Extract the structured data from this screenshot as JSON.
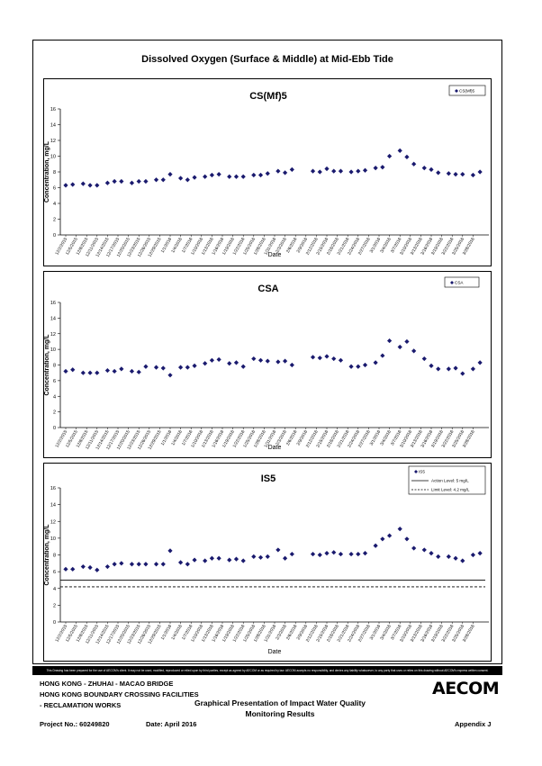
{
  "page": {
    "main_title": "Dissolved Oxygen (Surface & Middle) at Mid-Ebb Tide"
  },
  "colors": {
    "marker": "#1a1a6e",
    "axis": "#000000",
    "line": "#000000"
  },
  "chart_data": [
    {
      "type": "scatter",
      "title": "CS(Mf)5",
      "xlabel": "Date",
      "ylabel": "Concentration, mg/L",
      "ylim": [
        0,
        16
      ],
      "yticks": [
        0,
        2,
        4,
        6,
        8,
        10,
        12,
        14,
        16
      ],
      "legend": {
        "placement": "top-right",
        "entries": [
          {
            "label": "CS(Mf)5",
            "marker": "diamond"
          }
        ]
      },
      "x_tick_labels": [
        "12/2/2015",
        "12/5/2015",
        "12/8/2015",
        "12/11/2015",
        "12/14/2015",
        "12/17/2015",
        "12/20/2015",
        "12/23/2015",
        "12/26/2015",
        "12/29/2015",
        "1/1/2016",
        "1/4/2016",
        "1/7/2016",
        "1/10/2016",
        "1/13/2016",
        "1/16/2016",
        "1/19/2016",
        "1/22/2016",
        "1/25/2016",
        "1/28/2016",
        "1/31/2016",
        "2/3/2016",
        "2/6/2016",
        "2/9/2016",
        "2/12/2016",
        "2/15/2016",
        "2/18/2016",
        "2/21/2016",
        "2/24/2016",
        "2/27/2016",
        "3/1/2016",
        "3/4/2016",
        "3/7/2016",
        "3/10/2016",
        "3/13/2016",
        "3/16/2016",
        "3/19/2016",
        "3/22/2016",
        "3/25/2016",
        "3/28/2016"
      ],
      "series": [
        {
          "name": "CS(Mf)5",
          "points": [
            [
              "12/2/2015",
              6.3
            ],
            [
              "12/4/2015",
              6.4
            ],
            [
              "12/7/2015",
              6.5
            ],
            [
              "12/9/2015",
              6.3
            ],
            [
              "12/11/2015",
              6.3
            ],
            [
              "12/14/2015",
              6.6
            ],
            [
              "12/16/2015",
              6.8
            ],
            [
              "12/18/2015",
              6.8
            ],
            [
              "12/21/2015",
              6.6
            ],
            [
              "12/23/2015",
              6.8
            ],
            [
              "12/25/2015",
              6.8
            ],
            [
              "12/28/2015",
              7.0
            ],
            [
              "12/30/2015",
              7.0
            ],
            [
              "1/1/2016",
              7.7
            ],
            [
              "1/4/2016",
              7.2
            ],
            [
              "1/6/2016",
              7.0
            ],
            [
              "1/8/2016",
              7.3
            ],
            [
              "1/11/2016",
              7.4
            ],
            [
              "1/13/2016",
              7.6
            ],
            [
              "1/15/2016",
              7.7
            ],
            [
              "1/18/2016",
              7.4
            ],
            [
              "1/20/2016",
              7.4
            ],
            [
              "1/22/2016",
              7.4
            ],
            [
              "1/25/2016",
              7.6
            ],
            [
              "1/27/2016",
              7.6
            ],
            [
              "1/29/2016",
              7.8
            ],
            [
              "2/1/2016",
              8.1
            ],
            [
              "2/3/2016",
              7.9
            ],
            [
              "2/5/2016",
              8.3
            ],
            [
              "2/11/2016",
              8.1
            ],
            [
              "2/13/2016",
              8.0
            ],
            [
              "2/15/2016",
              8.4
            ],
            [
              "2/17/2016",
              8.1
            ],
            [
              "2/19/2016",
              8.1
            ],
            [
              "2/22/2016",
              8.0
            ],
            [
              "2/24/2016",
              8.1
            ],
            [
              "2/26/2016",
              8.2
            ],
            [
              "2/29/2016",
              8.5
            ],
            [
              "3/2/2016",
              8.6
            ],
            [
              "3/4/2016",
              10.0
            ],
            [
              "3/7/2016",
              10.7
            ],
            [
              "3/9/2016",
              9.9
            ],
            [
              "3/11/2016",
              9.0
            ],
            [
              "3/14/2016",
              8.5
            ],
            [
              "3/16/2016",
              8.3
            ],
            [
              "3/18/2016",
              7.9
            ],
            [
              "3/21/2016",
              7.8
            ],
            [
              "3/23/2016",
              7.7
            ],
            [
              "3/25/2016",
              7.7
            ],
            [
              "3/28/2016",
              7.6
            ],
            [
              "3/30/2016",
              8.0
            ]
          ]
        }
      ]
    },
    {
      "type": "scatter",
      "title": "CSA",
      "xlabel": "Date",
      "ylabel": "Concentration, mg/L",
      "ylim": [
        0,
        16
      ],
      "yticks": [
        0,
        2,
        4,
        6,
        8,
        10,
        12,
        14,
        16
      ],
      "legend": {
        "placement": "top-right",
        "entries": [
          {
            "label": "CSA",
            "marker": "diamond"
          }
        ]
      },
      "x_tick_labels": [
        "12/2/2015",
        "12/5/2015",
        "12/8/2015",
        "12/11/2015",
        "12/14/2015",
        "12/17/2015",
        "12/20/2015",
        "12/23/2015",
        "12/26/2015",
        "12/29/2015",
        "1/1/2016",
        "1/4/2016",
        "1/7/2016",
        "1/10/2016",
        "1/13/2016",
        "1/16/2016",
        "1/19/2016",
        "1/22/2016",
        "1/25/2016",
        "1/28/2016",
        "1/31/2016",
        "2/3/2016",
        "2/6/2016",
        "2/9/2016",
        "2/12/2016",
        "2/15/2016",
        "2/18/2016",
        "2/21/2016",
        "2/24/2016",
        "2/27/2016",
        "3/1/2016",
        "3/4/2016",
        "3/7/2016",
        "3/10/2016",
        "3/13/2016",
        "3/16/2016",
        "3/19/2016",
        "3/22/2016",
        "3/25/2016",
        "3/28/2016"
      ],
      "series": [
        {
          "name": "CSA",
          "points": [
            [
              "12/2/2015",
              7.2
            ],
            [
              "12/4/2015",
              7.4
            ],
            [
              "12/7/2015",
              7.0
            ],
            [
              "12/9/2015",
              7.0
            ],
            [
              "12/11/2015",
              7.0
            ],
            [
              "12/14/2015",
              7.3
            ],
            [
              "12/16/2015",
              7.2
            ],
            [
              "12/18/2015",
              7.5
            ],
            [
              "12/21/2015",
              7.2
            ],
            [
              "12/23/2015",
              7.1
            ],
            [
              "12/25/2015",
              7.8
            ],
            [
              "12/28/2015",
              7.7
            ],
            [
              "12/30/2015",
              7.6
            ],
            [
              "1/1/2016",
              6.7
            ],
            [
              "1/4/2016",
              7.7
            ],
            [
              "1/6/2016",
              7.7
            ],
            [
              "1/8/2016",
              7.9
            ],
            [
              "1/11/2016",
              8.2
            ],
            [
              "1/13/2016",
              8.6
            ],
            [
              "1/15/2016",
              8.7
            ],
            [
              "1/18/2016",
              8.2
            ],
            [
              "1/20/2016",
              8.3
            ],
            [
              "1/22/2016",
              7.8
            ],
            [
              "1/25/2016",
              8.8
            ],
            [
              "1/27/2016",
              8.6
            ],
            [
              "1/29/2016",
              8.5
            ],
            [
              "2/1/2016",
              8.4
            ],
            [
              "2/3/2016",
              8.5
            ],
            [
              "2/5/2016",
              8.0
            ],
            [
              "2/11/2016",
              9.0
            ],
            [
              "2/13/2016",
              8.9
            ],
            [
              "2/15/2016",
              9.1
            ],
            [
              "2/17/2016",
              8.8
            ],
            [
              "2/19/2016",
              8.6
            ],
            [
              "2/22/2016",
              7.8
            ],
            [
              "2/24/2016",
              7.8
            ],
            [
              "2/26/2016",
              8.0
            ],
            [
              "2/29/2016",
              8.3
            ],
            [
              "3/2/2016",
              9.2
            ],
            [
              "3/4/2016",
              11.1
            ],
            [
              "3/7/2016",
              10.3
            ],
            [
              "3/9/2016",
              11.0
            ],
            [
              "3/11/2016",
              9.8
            ],
            [
              "3/14/2016",
              8.8
            ],
            [
              "3/16/2016",
              7.9
            ],
            [
              "3/18/2016",
              7.5
            ],
            [
              "3/21/2016",
              7.5
            ],
            [
              "3/23/2016",
              7.6
            ],
            [
              "3/25/2016",
              6.9
            ],
            [
              "3/28/2016",
              7.5
            ],
            [
              "3/30/2016",
              8.3
            ]
          ]
        }
      ]
    },
    {
      "type": "scatter",
      "title": "IS5",
      "xlabel": "Date",
      "ylabel": "Concentration, mg/L",
      "ylim": [
        0,
        16
      ],
      "yticks": [
        0,
        2,
        4,
        6,
        8,
        10,
        12,
        14,
        16
      ],
      "legend": {
        "placement": "top-right",
        "entries": [
          {
            "label": "IS5",
            "marker": "diamond"
          },
          {
            "label": "Action Level: 5 mg/L",
            "marker": "solid-line"
          },
          {
            "label": "Limit Level: 4.2 mg/L",
            "marker": "dashed-line"
          }
        ]
      },
      "reference_lines": [
        {
          "label": "Action Level: 5 mg/L",
          "value": 5,
          "style": "solid"
        },
        {
          "label": "Limit Level: 4.2 mg/L",
          "value": 4.2,
          "style": "dashed"
        }
      ],
      "x_tick_labels": [
        "12/2/2015",
        "12/5/2015",
        "12/8/2015",
        "12/11/2015",
        "12/14/2015",
        "12/17/2015",
        "12/20/2015",
        "12/23/2015",
        "12/26/2015",
        "12/29/2015",
        "1/1/2016",
        "1/4/2016",
        "1/7/2016",
        "1/10/2016",
        "1/13/2016",
        "1/16/2016",
        "1/19/2016",
        "1/22/2016",
        "1/25/2016",
        "1/28/2016",
        "1/31/2016",
        "2/3/2016",
        "2/6/2016",
        "2/9/2016",
        "2/12/2016",
        "2/15/2016",
        "2/18/2016",
        "2/21/2016",
        "2/24/2016",
        "2/27/2016",
        "3/1/2016",
        "3/4/2016",
        "3/7/2016",
        "3/10/2016",
        "3/13/2016",
        "3/16/2016",
        "3/19/2016",
        "3/22/2016",
        "3/25/2016",
        "3/28/2016"
      ],
      "series": [
        {
          "name": "IS5",
          "points": [
            [
              "12/2/2015",
              6.3
            ],
            [
              "12/4/2015",
              6.3
            ],
            [
              "12/7/2015",
              6.6
            ],
            [
              "12/9/2015",
              6.5
            ],
            [
              "12/11/2015",
              6.2
            ],
            [
              "12/14/2015",
              6.6
            ],
            [
              "12/16/2015",
              6.9
            ],
            [
              "12/18/2015",
              7.0
            ],
            [
              "12/21/2015",
              6.9
            ],
            [
              "12/23/2015",
              6.9
            ],
            [
              "12/25/2015",
              6.9
            ],
            [
              "12/28/2015",
              6.9
            ],
            [
              "12/30/2015",
              6.9
            ],
            [
              "1/1/2016",
              8.5
            ],
            [
              "1/4/2016",
              7.1
            ],
            [
              "1/6/2016",
              6.9
            ],
            [
              "1/8/2016",
              7.4
            ],
            [
              "1/11/2016",
              7.3
            ],
            [
              "1/13/2016",
              7.6
            ],
            [
              "1/15/2016",
              7.6
            ],
            [
              "1/18/2016",
              7.4
            ],
            [
              "1/20/2016",
              7.5
            ],
            [
              "1/22/2016",
              7.3
            ],
            [
              "1/25/2016",
              7.8
            ],
            [
              "1/27/2016",
              7.7
            ],
            [
              "1/29/2016",
              7.8
            ],
            [
              "2/1/2016",
              8.6
            ],
            [
              "2/3/2016",
              7.6
            ],
            [
              "2/5/2016",
              8.1
            ],
            [
              "2/11/2016",
              8.1
            ],
            [
              "2/13/2016",
              8.0
            ],
            [
              "2/15/2016",
              8.2
            ],
            [
              "2/17/2016",
              8.3
            ],
            [
              "2/19/2016",
              8.1
            ],
            [
              "2/22/2016",
              8.1
            ],
            [
              "2/24/2016",
              8.1
            ],
            [
              "2/26/2016",
              8.2
            ],
            [
              "2/29/2016",
              9.1
            ],
            [
              "3/2/2016",
              9.9
            ],
            [
              "3/4/2016",
              10.3
            ],
            [
              "3/7/2016",
              11.1
            ],
            [
              "3/9/2016",
              9.9
            ],
            [
              "3/11/2016",
              8.8
            ],
            [
              "3/14/2016",
              8.6
            ],
            [
              "3/16/2016",
              8.2
            ],
            [
              "3/18/2016",
              7.8
            ],
            [
              "3/21/2016",
              7.8
            ],
            [
              "3/23/2016",
              7.6
            ],
            [
              "3/25/2016",
              7.3
            ],
            [
              "3/28/2016",
              8.0
            ],
            [
              "3/30/2016",
              8.2
            ]
          ]
        }
      ]
    }
  ],
  "footer": {
    "disclaimer": "This Drawing has been prepared for the use of AECOM's client. It may not be used, modified, reproduced or relied upon by third parties, except as agreed by AECOM or as required by law. AECOM accepts no responsibility, and denies any liability whatsoever, to any party that uses or relies on this drawing without AECOM's express written consent.",
    "line1": "HONG KONG - ZHUHAI - MACAO BRIDGE",
    "line2": "HONG KONG BOUNDARY CROSSING FACILITIES",
    "line3": "- RECLAMATION WORKS",
    "center1": "Graphical Presentation of Impact Water Quality",
    "center2": "Monitoring Results",
    "project": "Project No.: 60249820",
    "date": "Date: April 2016",
    "appendix": "Appendix J",
    "logo": "AECOM"
  }
}
